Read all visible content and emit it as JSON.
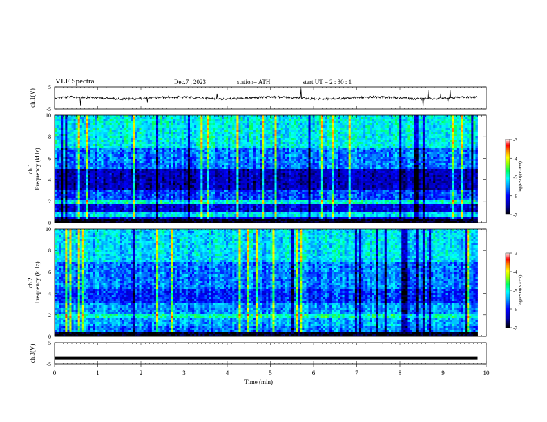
{
  "header": {
    "title": "VLF  Spectra",
    "date": "Dec.7  , 2023",
    "station": "station= ATH",
    "start_ut": "start  UT  =   2  : 30 : 1"
  },
  "chart_data": [
    {
      "type": "line",
      "panel": "ch1-waveform",
      "ylabel": "ch.1(V)",
      "ylim": [
        -5,
        5
      ],
      "yticks": [
        -5,
        5
      ],
      "xlim": [
        0,
        10
      ],
      "baseline": 0,
      "trace_span": [
        0,
        9.8
      ],
      "trace_color": "#000000"
    },
    {
      "type": "heatmap",
      "panel": "ch1-spectrogram",
      "ylabel_ch": "ch.1",
      "ylabel": "Frequency  (kHz)",
      "ylim": [
        0,
        10
      ],
      "yticks": [
        0,
        2,
        4,
        6,
        8,
        10
      ],
      "xlim": [
        0,
        10
      ],
      "data_span": [
        0,
        9.8
      ],
      "colorbar": {
        "label": "log(PSD)(V²/Hz)",
        "range": [
          -7,
          -3
        ],
        "ticks": [
          -7,
          -6,
          -5,
          -4,
          -3
        ]
      },
      "bands": [
        {
          "f": [
            0,
            0.3
          ],
          "level": -7.0
        },
        {
          "f": [
            0.3,
            0.6
          ],
          "level": -6.2
        },
        {
          "f": [
            0.6,
            1.0
          ],
          "level": -5.2
        },
        {
          "f": [
            1.0,
            1.8
          ],
          "level": -6.2
        },
        {
          "f": [
            1.8,
            2.2
          ],
          "level": -5.0
        },
        {
          "f": [
            2.2,
            3.0
          ],
          "level": -5.8
        },
        {
          "f": [
            3.0,
            5.0
          ],
          "level": -6.4
        },
        {
          "f": [
            5.0,
            7.0
          ],
          "level": -5.6
        },
        {
          "f": [
            7.0,
            10.0
          ],
          "level": -5.1
        }
      ]
    },
    {
      "type": "heatmap",
      "panel": "ch2-spectrogram",
      "ylabel_ch": "ch.2",
      "ylabel": "Frequency  (kHz)",
      "ylim": [
        0,
        10
      ],
      "yticks": [
        0,
        2,
        4,
        6,
        8,
        10
      ],
      "xlim": [
        0,
        10
      ],
      "data_span": [
        0,
        9.8
      ],
      "colorbar": {
        "label": "log(PSD)(V²/Hz)",
        "range": [
          -7,
          -3
        ],
        "ticks": [
          -7,
          -6,
          -5,
          -4,
          -3
        ]
      },
      "bands": [
        {
          "f": [
            0,
            0.3
          ],
          "level": -7.0
        },
        {
          "f": [
            0.3,
            1.0
          ],
          "level": -5.6
        },
        {
          "f": [
            1.0,
            1.7
          ],
          "level": -5.4
        },
        {
          "f": [
            1.7,
            2.2
          ],
          "level": -4.9
        },
        {
          "f": [
            2.2,
            3.0
          ],
          "level": -5.5
        },
        {
          "f": [
            3.0,
            4.5
          ],
          "level": -5.9
        },
        {
          "f": [
            4.5,
            7.0
          ],
          "level": -5.6
        },
        {
          "f": [
            7.0,
            10.0
          ],
          "level": -5.2
        }
      ]
    },
    {
      "type": "line",
      "panel": "ch3-waveform",
      "ylabel": "ch.3(V)",
      "ylim": [
        -5,
        5
      ],
      "yticks": [
        -5,
        5
      ],
      "xlim": [
        0,
        10
      ],
      "baseline": -2.3,
      "trace_span": [
        0,
        9.8
      ],
      "trace_color": "#000000"
    }
  ],
  "x_axis": {
    "label": "Time  (min)",
    "ticks": [
      0,
      1,
      2,
      3,
      4,
      5,
      6,
      7,
      8,
      9,
      10
    ],
    "range": [
      0,
      10
    ]
  }
}
